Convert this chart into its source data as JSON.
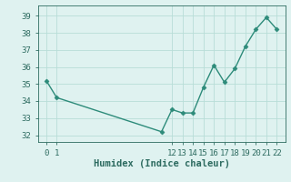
{
  "x": [
    0,
    1,
    11,
    12,
    13,
    14,
    15,
    16,
    17,
    18,
    19,
    20,
    21,
    22
  ],
  "y": [
    35.2,
    34.2,
    32.2,
    33.5,
    33.3,
    33.3,
    34.8,
    36.1,
    35.1,
    35.9,
    37.2,
    38.2,
    38.9,
    38.2
  ],
  "line_color": "#2d8b7a",
  "marker": "D",
  "marker_size": 2.5,
  "linewidth": 1.0,
  "background_color": "#dff2f0",
  "grid_color": "#b8ddd8",
  "xlabel": "Humidex (Indice chaleur)",
  "xlabel_fontsize": 7.5,
  "xlabel_color": "#2d6b60",
  "yticks": [
    32,
    33,
    34,
    35,
    36,
    37,
    38,
    39
  ],
  "ylim": [
    31.6,
    39.6
  ],
  "xlim": [
    -0.8,
    22.8
  ],
  "tick_color": "#2d6b60",
  "tick_fontsize": 6.5
}
